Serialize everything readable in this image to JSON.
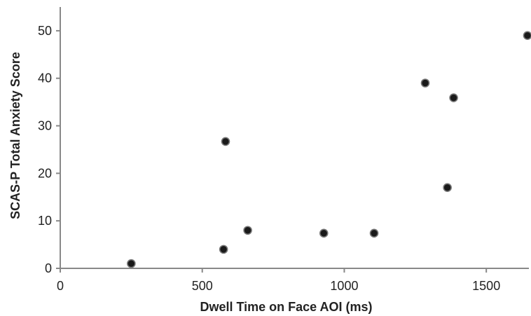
{
  "chart_data": {
    "type": "scatter",
    "title": "",
    "xlabel": "Dwell Time on Face AOI (ms)",
    "ylabel": "SCAS-P Total Anxiety Score",
    "xlim": [
      0,
      1650
    ],
    "ylim": [
      0,
      55
    ],
    "xticks": [
      0,
      500,
      1000,
      1500
    ],
    "yticks": [
      0,
      10,
      20,
      30,
      40,
      50
    ],
    "grid": false,
    "legend": "none",
    "marker_color": "#1a1a1a",
    "axis_color": "#888888",
    "points": [
      {
        "x": 250,
        "y": 1
      },
      {
        "x": 575,
        "y": 4
      },
      {
        "x": 582,
        "y": 26.7
      },
      {
        "x": 660,
        "y": 8
      },
      {
        "x": 928,
        "y": 7.4
      },
      {
        "x": 1105,
        "y": 7.4
      },
      {
        "x": 1285,
        "y": 39
      },
      {
        "x": 1363,
        "y": 17
      },
      {
        "x": 1385,
        "y": 35.9
      },
      {
        "x": 1645,
        "y": 49
      }
    ]
  }
}
